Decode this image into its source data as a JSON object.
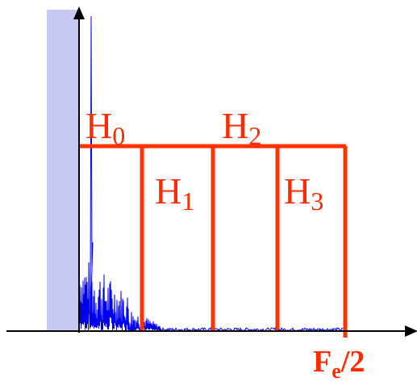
{
  "colors": {
    "filter": "#ff3300",
    "spectrum": "#0000ee",
    "shade": "#c8c8f5",
    "axis": "#000000"
  },
  "labels": {
    "h0": {
      "main": "H",
      "sub": "0"
    },
    "h1": {
      "main": "H",
      "sub": "1"
    },
    "h2": {
      "main": "H",
      "sub": "2"
    },
    "h3": {
      "main": "H",
      "sub": "3"
    },
    "fe": {
      "main": "F",
      "sub": "e",
      "tail": "/2"
    }
  }
}
